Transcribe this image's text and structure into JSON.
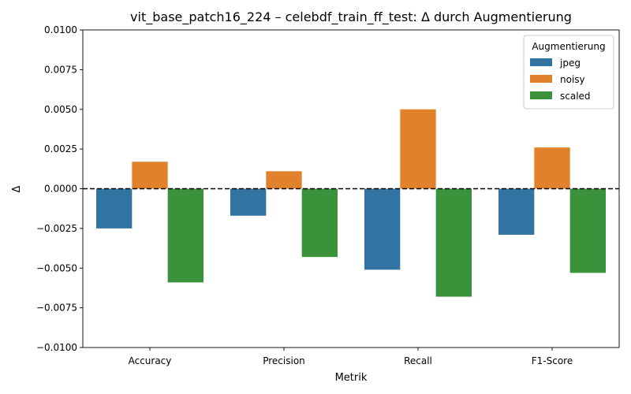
{
  "chart_data": {
    "type": "bar",
    "title": "vit_base_patch16_224 – celebdf_train_ff_test: Δ durch Augmentierung",
    "xlabel": "Metrik",
    "ylabel": "Δ",
    "categories": [
      "Accuracy",
      "Precision",
      "Recall",
      "F1-Score"
    ],
    "ylim": [
      -0.01,
      0.01
    ],
    "yticks": [
      -0.01,
      -0.0075,
      -0.005,
      -0.0025,
      0.0,
      0.0025,
      0.005,
      0.0075,
      0.01
    ],
    "ytick_labels": [
      "−0.0100",
      "−0.0075",
      "−0.0050",
      "−0.0025",
      "0.0000",
      "0.0025",
      "0.0050",
      "0.0075",
      "0.0100"
    ],
    "reference_line": 0.0,
    "grid": false,
    "legend": {
      "title": "Augmentierung",
      "placement": "top-right"
    },
    "series": [
      {
        "name": "jpeg",
        "color": "#3274a1",
        "values": [
          -0.0025,
          -0.0017,
          -0.0051,
          -0.0029
        ]
      },
      {
        "name": "noisy",
        "color": "#e1812c",
        "values": [
          0.0017,
          0.0011,
          0.005,
          0.0026
        ]
      },
      {
        "name": "scaled",
        "color": "#3a923a",
        "values": [
          -0.0059,
          -0.0043,
          -0.0068,
          -0.0053
        ]
      }
    ]
  }
}
